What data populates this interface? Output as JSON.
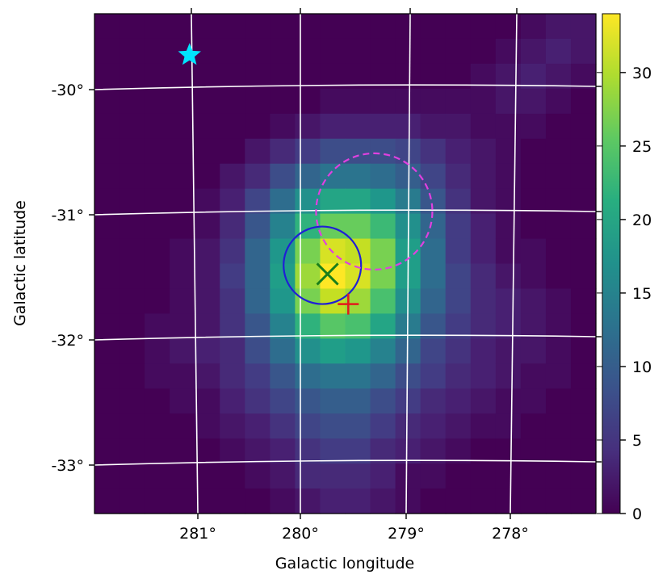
{
  "chart_data": {
    "type": "heatmap",
    "xlabel": "Galactic longitude",
    "ylabel": "Galactic latitude",
    "x_ticks": [
      "281°",
      "280°",
      "279°",
      "278°"
    ],
    "y_ticks": [
      "-30°",
      "-31°",
      "-32°",
      "-33°"
    ],
    "colorbar": {
      "range": [
        0,
        34
      ],
      "ticks": [
        "0",
        "5",
        "10",
        "15",
        "20",
        "25",
        "30"
      ],
      "tick_values": [
        0,
        5,
        10,
        15,
        20,
        25,
        30
      ],
      "colormap": "viridis"
    },
    "grid": true,
    "pixel_grid_note": "20x20 map of counts, rows top (b≈-29.5°) to bottom (b≈-33.4°), cols left (l≈282°) to right (l≈277.3°)",
    "values": [
      [
        0,
        0,
        0,
        0,
        0,
        0,
        0,
        0,
        0,
        0,
        0,
        0,
        0,
        0,
        0,
        0,
        0,
        1,
        2,
        2
      ],
      [
        0,
        0,
        0,
        0,
        0,
        0,
        0,
        0,
        0,
        0,
        0,
        0,
        0,
        0,
        0,
        0,
        1,
        2,
        3,
        2
      ],
      [
        0,
        0,
        0,
        0,
        0,
        0,
        0,
        0,
        0,
        0,
        0,
        0,
        0,
        0,
        0,
        1,
        2,
        3,
        2,
        1
      ],
      [
        0,
        0,
        0,
        0,
        0,
        0,
        0,
        0,
        0,
        1,
        1,
        1,
        1,
        1,
        1,
        1,
        2,
        2,
        1,
        0
      ],
      [
        0,
        0,
        0,
        0,
        0,
        0,
        0,
        1,
        2,
        3,
        3,
        3,
        3,
        2,
        2,
        1,
        1,
        1,
        0,
        0
      ],
      [
        0,
        0,
        0,
        0,
        0,
        0,
        2,
        4,
        6,
        8,
        8,
        8,
        7,
        5,
        3,
        2,
        1,
        0,
        0,
        0
      ],
      [
        0,
        0,
        0,
        0,
        0,
        2,
        4,
        8,
        11,
        13,
        13,
        12,
        10,
        7,
        4,
        2,
        1,
        0,
        0,
        0
      ],
      [
        0,
        0,
        0,
        0,
        1,
        3,
        7,
        12,
        17,
        20,
        20,
        18,
        14,
        9,
        5,
        2,
        1,
        0,
        0,
        0
      ],
      [
        0,
        0,
        0,
        0,
        1,
        4,
        9,
        15,
        22,
        26,
        26,
        23,
        17,
        11,
        6,
        3,
        1,
        0,
        0,
        0
      ],
      [
        0,
        0,
        0,
        1,
        2,
        5,
        11,
        18,
        27,
        32,
        31,
        27,
        19,
        12,
        6,
        3,
        1,
        1,
        0,
        0
      ],
      [
        0,
        0,
        0,
        1,
        2,
        6,
        11,
        19,
        29,
        34,
        32,
        27,
        19,
        12,
        7,
        4,
        2,
        1,
        0,
        0
      ],
      [
        0,
        0,
        0,
        1,
        2,
        5,
        11,
        18,
        27,
        31,
        29,
        24,
        17,
        11,
        7,
        4,
        3,
        2,
        1,
        0
      ],
      [
        0,
        0,
        1,
        1,
        2,
        5,
        9,
        15,
        22,
        25,
        24,
        20,
        14,
        9,
        6,
        4,
        3,
        2,
        1,
        0
      ],
      [
        0,
        0,
        1,
        2,
        3,
        4,
        8,
        12,
        17,
        19,
        18,
        15,
        11,
        7,
        5,
        3,
        2,
        2,
        1,
        0
      ],
      [
        0,
        0,
        1,
        1,
        2,
        4,
        6,
        9,
        12,
        13,
        13,
        11,
        8,
        6,
        4,
        3,
        2,
        1,
        1,
        0
      ],
      [
        0,
        0,
        0,
        1,
        1,
        3,
        5,
        7,
        9,
        10,
        10,
        8,
        6,
        4,
        3,
        2,
        1,
        1,
        0,
        0
      ],
      [
        0,
        0,
        0,
        0,
        1,
        2,
        3,
        5,
        7,
        8,
        8,
        6,
        4,
        3,
        2,
        1,
        1,
        0,
        0,
        0
      ],
      [
        0,
        0,
        0,
        0,
        0,
        1,
        2,
        3,
        5,
        6,
        6,
        4,
        3,
        2,
        1,
        0,
        0,
        0,
        0,
        0
      ],
      [
        0,
        0,
        0,
        0,
        0,
        0,
        1,
        2,
        4,
        4,
        4,
        3,
        1,
        1,
        0,
        0,
        0,
        0,
        0,
        0
      ],
      [
        0,
        0,
        0,
        0,
        0,
        0,
        0,
        1,
        2,
        3,
        3,
        2,
        1,
        0,
        0,
        0,
        0,
        0,
        0,
        0
      ]
    ],
    "markers": [
      {
        "name": "star",
        "glyph": "★",
        "color": "#00e5ff",
        "l": 281.08,
        "b": -29.73
      },
      {
        "name": "cross-x",
        "glyph": "×",
        "color": "#1a7f1a",
        "l": 279.75,
        "b": -31.48
      },
      {
        "name": "plus",
        "glyph": "+",
        "color": "#e31a1c",
        "l": 279.55,
        "b": -31.72
      }
    ],
    "circles": [
      {
        "name": "solid-circle",
        "color": "#1f1fd6",
        "style": "solid",
        "l": 279.8,
        "b": -31.41,
        "r_deg": 0.32
      },
      {
        "name": "dashed-circle",
        "color": "#e040e0",
        "style": "dashed",
        "l": 279.3,
        "b": -30.98,
        "r_deg": 0.48
      }
    ]
  }
}
